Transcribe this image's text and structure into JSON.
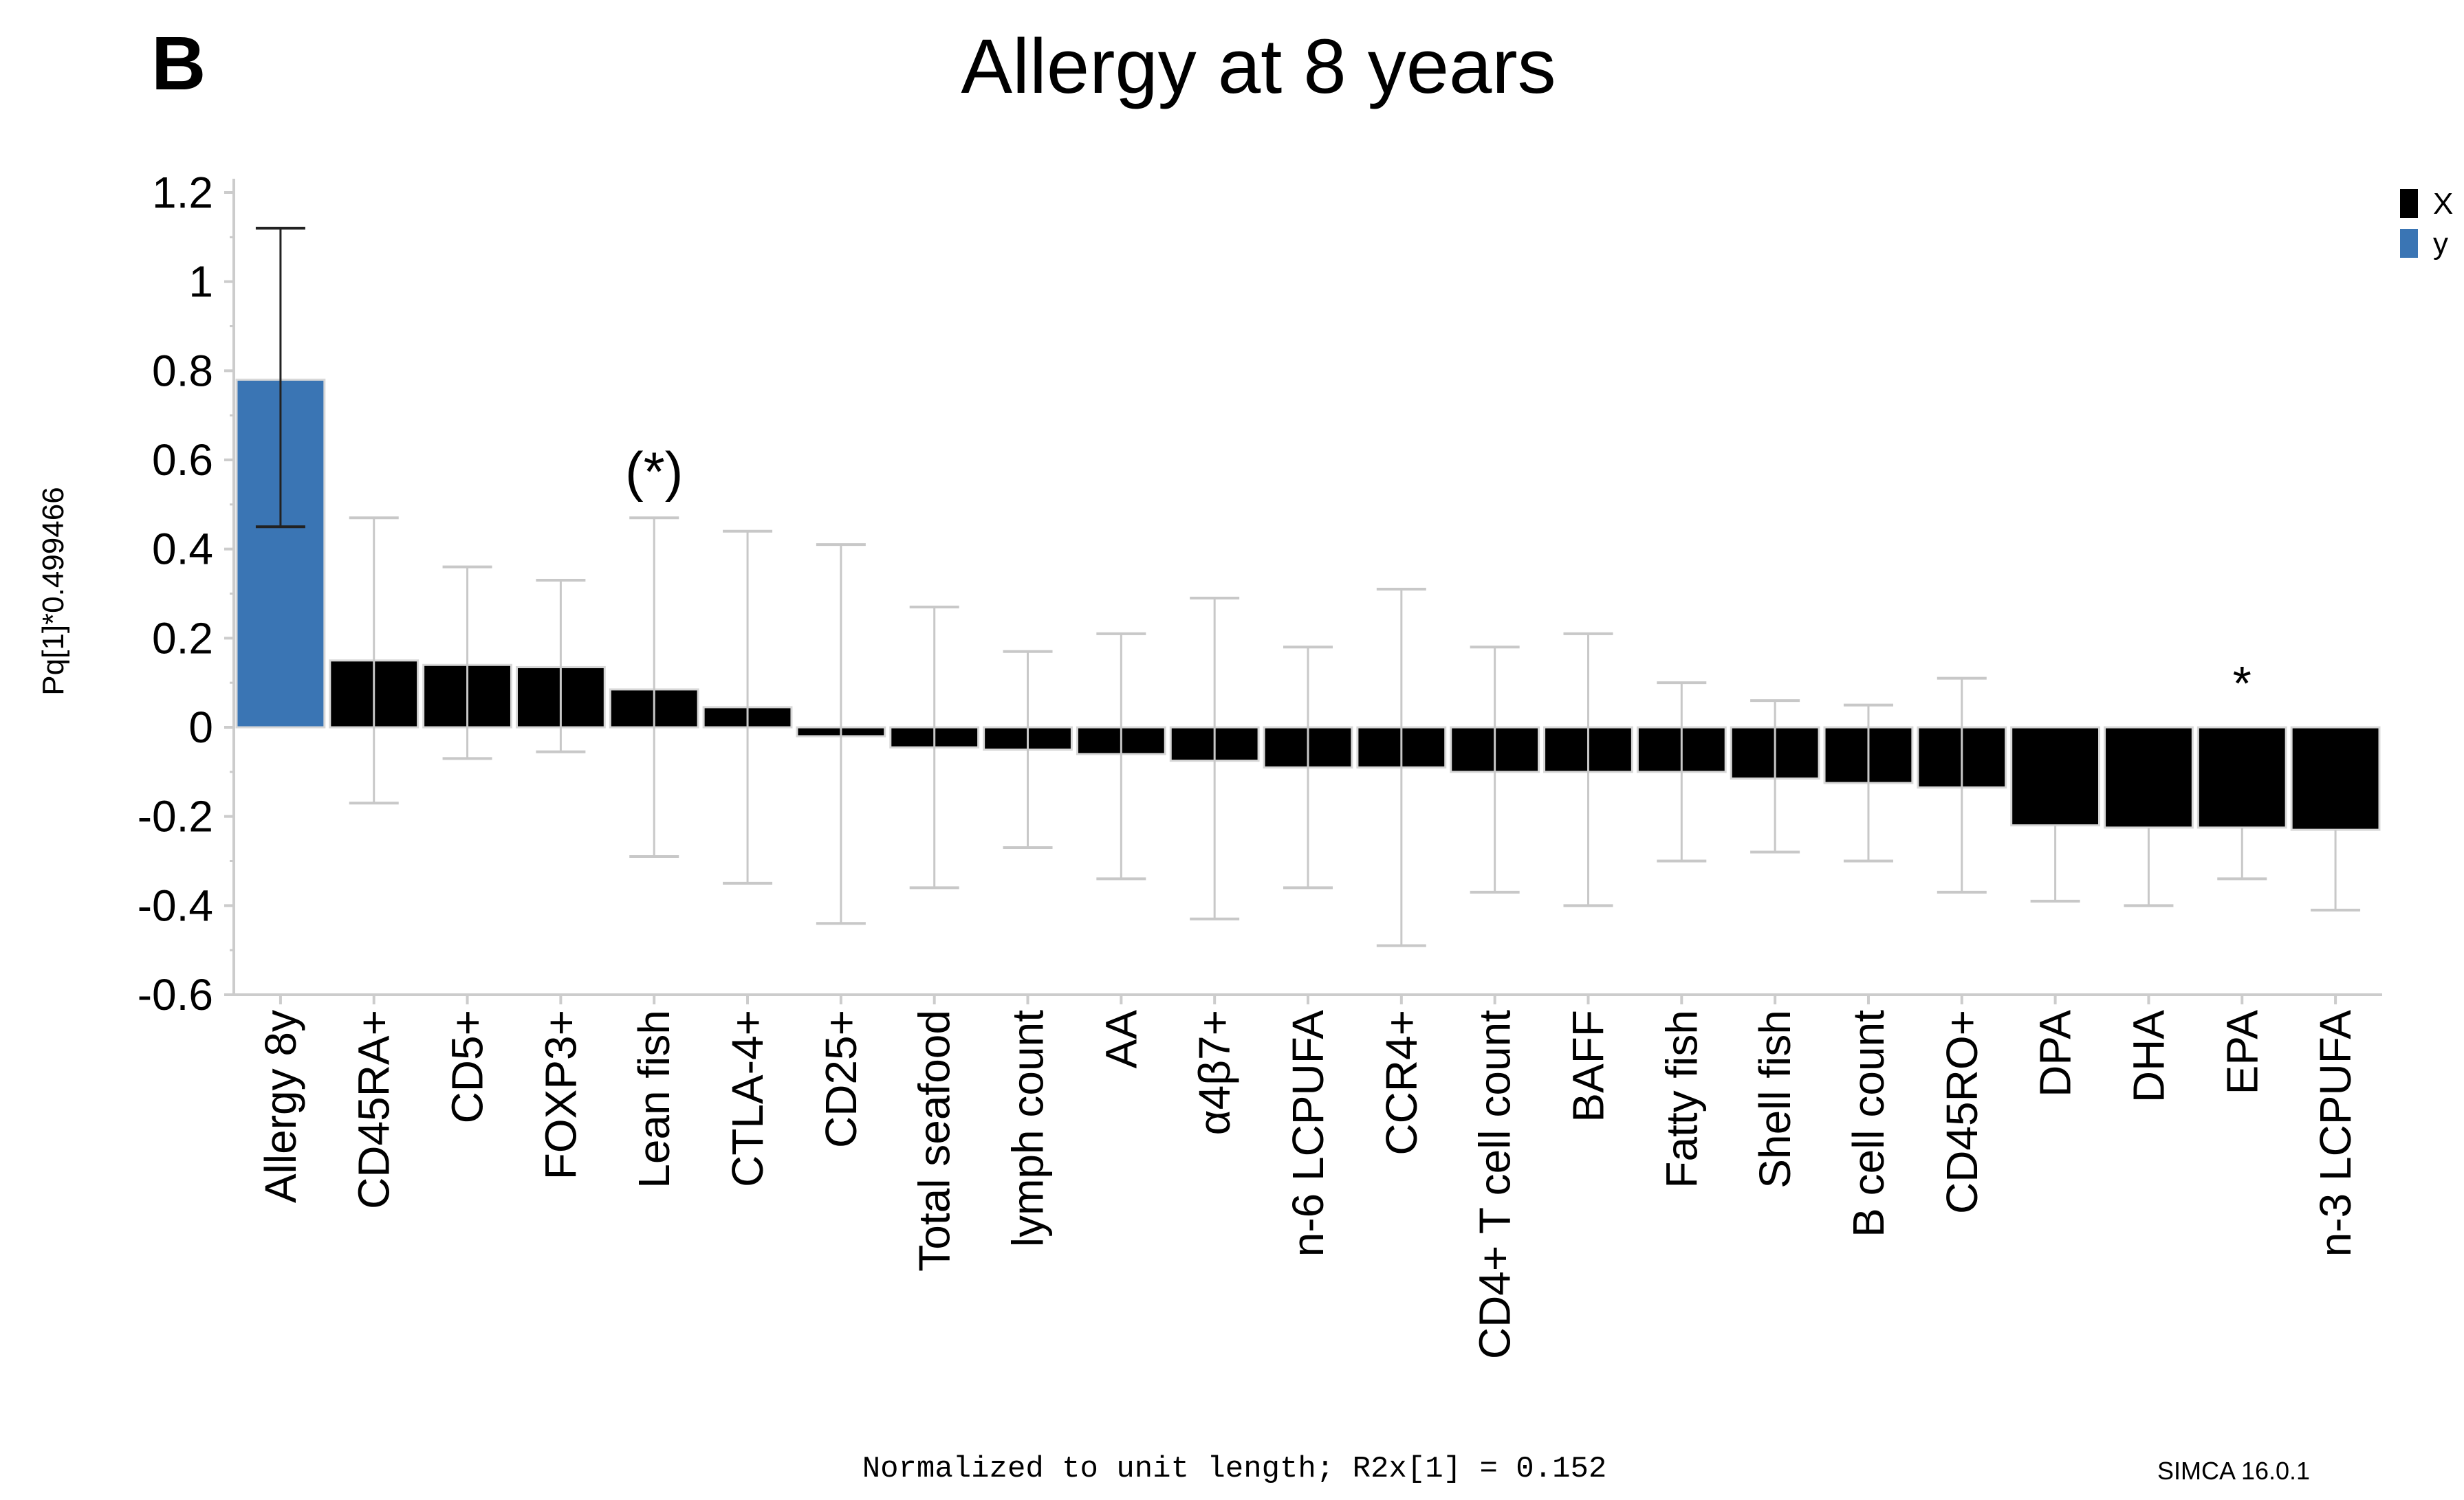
{
  "panel_label": "B",
  "footer": {
    "note": "Normalized to unit length; R2x[1] = 0.152",
    "software": "SIMCA 16.0.1"
  },
  "chart_data": {
    "type": "bar",
    "title": "Allergy at 8 years",
    "xlabel": "",
    "ylabel": "Pq[1]*0.499466",
    "ylim": [
      -0.6,
      1.2
    ],
    "yticks": [
      "1.2",
      "1",
      "0.8",
      "0.6",
      "0.4",
      "0.2",
      "0",
      "-0.2",
      "-0.4",
      "-0.6"
    ],
    "ytick_values": [
      1.2,
      1,
      0.8,
      0.6,
      0.4,
      0.2,
      0,
      -0.2,
      -0.4,
      -0.6
    ],
    "grid": false,
    "legend": {
      "placement": "top-right",
      "entries": [
        {
          "label": "X",
          "color": "#000000"
        },
        {
          "label": "y",
          "color": "#3a75b4"
        }
      ]
    },
    "categories": [
      "Allergy 8y",
      "CD45RA+",
      "CD5+",
      "FOXP3+",
      "Lean fish",
      "CTLA-4+",
      "CD25+",
      "Total seafood",
      "lymph count",
      "AA",
      "α4β7+",
      "n-6 LCPUFA",
      "CCR4+",
      "CD4+ T cell count",
      "BAFF",
      "Fatty fish",
      "Shell fish",
      "B cell count",
      "CD45RO+",
      "DPA",
      "DHA",
      "EPA",
      "n-3 LCPUFA"
    ],
    "values": [
      0.78,
      0.15,
      0.14,
      0.135,
      0.085,
      0.045,
      -0.02,
      -0.045,
      -0.05,
      -0.06,
      -0.075,
      -0.09,
      -0.09,
      -0.1,
      -0.1,
      -0.1,
      -0.115,
      -0.125,
      -0.135,
      -0.22,
      -0.225,
      -0.225,
      -0.23
    ],
    "error_low": [
      0.45,
      -0.17,
      -0.07,
      -0.055,
      -0.29,
      -0.35,
      -0.44,
      -0.36,
      -0.27,
      -0.34,
      -0.43,
      -0.36,
      -0.49,
      -0.37,
      -0.4,
      -0.3,
      -0.28,
      -0.3,
      -0.37,
      -0.39,
      -0.4,
      -0.34,
      -0.41
    ],
    "error_high": [
      1.12,
      0.47,
      0.36,
      0.33,
      0.47,
      0.44,
      0.41,
      0.27,
      0.17,
      0.21,
      0.29,
      0.18,
      0.31,
      0.18,
      0.21,
      0.1,
      0.06,
      0.05,
      0.11,
      null,
      null,
      null,
      null
    ],
    "series_group": [
      "y",
      "X",
      "X",
      "X",
      "X",
      "X",
      "X",
      "X",
      "X",
      "X",
      "X",
      "X",
      "X",
      "X",
      "X",
      "X",
      "X",
      "X",
      "X",
      "X",
      "X",
      "X",
      "X"
    ],
    "annotations": [
      {
        "category": "Lean fish",
        "text": "(*)"
      },
      {
        "category": "EPA",
        "text": "*"
      }
    ]
  }
}
